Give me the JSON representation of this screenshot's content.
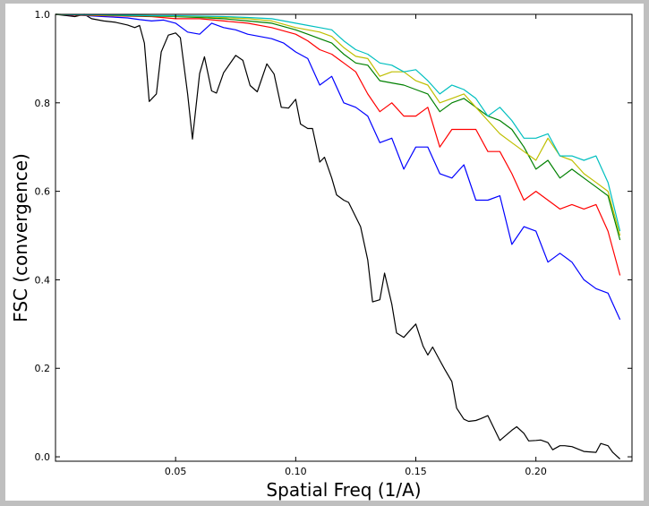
{
  "chart_data": {
    "type": "line",
    "xlabel": "Spatial Freq (1/A)",
    "ylabel": "FSC (convergence)",
    "xlim": [
      0.0,
      0.24
    ],
    "ylim": [
      -0.01,
      1.0
    ],
    "x_ticks": [
      {
        "value": 0.05,
        "label": "0.05"
      },
      {
        "value": 0.1,
        "label": "0.10"
      },
      {
        "value": 0.15,
        "label": "0.15"
      },
      {
        "value": 0.2,
        "label": "0.20"
      }
    ],
    "y_ticks": [
      {
        "value": 0.0,
        "label": "0.0"
      },
      {
        "value": 0.2,
        "label": "0.2"
      },
      {
        "value": 0.4,
        "label": "0.4"
      },
      {
        "value": 0.6,
        "label": "0.6"
      },
      {
        "value": 0.8,
        "label": "0.8"
      },
      {
        "value": 1.0,
        "label": "1.0"
      }
    ],
    "grid": false,
    "legend": "none",
    "series": [
      {
        "color": "#000000",
        "x": [
          0.0,
          0.005,
          0.008,
          0.012,
          0.015,
          0.02,
          0.025,
          0.03,
          0.033,
          0.035,
          0.037,
          0.039,
          0.042,
          0.044,
          0.047,
          0.05,
          0.052,
          0.055,
          0.057,
          0.06,
          0.062,
          0.065,
          0.067,
          0.07,
          0.075,
          0.078,
          0.081,
          0.084,
          0.088,
          0.091,
          0.094,
          0.097,
          0.1,
          0.102,
          0.105,
          0.107,
          0.11,
          0.112,
          0.115,
          0.117,
          0.12,
          0.122,
          0.127,
          0.13,
          0.132,
          0.135,
          0.137,
          0.14,
          0.142,
          0.145,
          0.147,
          0.15,
          0.153,
          0.155,
          0.157,
          0.16,
          0.162,
          0.165,
          0.167,
          0.17,
          0.172,
          0.175,
          0.177,
          0.18,
          0.185,
          0.19,
          0.192,
          0.195,
          0.197,
          0.2,
          0.202,
          0.205,
          0.207,
          0.21,
          0.212,
          0.215,
          0.22,
          0.225,
          0.227,
          0.23,
          0.232,
          0.235
        ],
        "y": [
          1.0,
          0.997,
          0.995,
          1.0,
          0.99,
          0.985,
          0.982,
          0.976,
          0.97,
          0.975,
          0.935,
          0.803,
          0.82,
          0.915,
          0.953,
          0.958,
          0.947,
          0.82,
          0.718,
          0.866,
          0.904,
          0.827,
          0.822,
          0.868,
          0.907,
          0.896,
          0.839,
          0.825,
          0.888,
          0.865,
          0.79,
          0.788,
          0.808,
          0.752,
          0.742,
          0.742,
          0.666,
          0.677,
          0.63,
          0.592,
          0.58,
          0.575,
          0.52,
          0.445,
          0.35,
          0.355,
          0.415,
          0.345,
          0.28,
          0.27,
          0.282,
          0.3,
          0.25,
          0.23,
          0.248,
          0.218,
          0.198,
          0.17,
          0.11,
          0.085,
          0.08,
          0.082,
          0.086,
          0.093,
          0.037,
          0.06,
          0.068,
          0.053,
          0.036,
          0.037,
          0.038,
          0.032,
          0.016,
          0.025,
          0.025,
          0.023,
          0.012,
          0.01,
          0.03,
          0.025,
          0.01,
          -0.005
        ]
      },
      {
        "color": "#0000ff",
        "x": [
          0.0,
          0.01,
          0.02,
          0.03,
          0.035,
          0.04,
          0.045,
          0.05,
          0.055,
          0.06,
          0.065,
          0.07,
          0.075,
          0.08,
          0.085,
          0.09,
          0.095,
          0.1,
          0.105,
          0.11,
          0.115,
          0.12,
          0.125,
          0.13,
          0.135,
          0.14,
          0.145,
          0.15,
          0.155,
          0.16,
          0.165,
          0.17,
          0.175,
          0.18,
          0.185,
          0.19,
          0.195,
          0.2,
          0.205,
          0.21,
          0.215,
          0.22,
          0.225,
          0.23,
          0.235
        ],
        "y": [
          1.0,
          0.998,
          0.995,
          0.992,
          0.988,
          0.985,
          0.987,
          0.98,
          0.96,
          0.955,
          0.98,
          0.97,
          0.965,
          0.955,
          0.95,
          0.945,
          0.935,
          0.915,
          0.9,
          0.84,
          0.86,
          0.8,
          0.79,
          0.77,
          0.71,
          0.72,
          0.65,
          0.7,
          0.7,
          0.64,
          0.63,
          0.66,
          0.58,
          0.58,
          0.59,
          0.48,
          0.52,
          0.51,
          0.44,
          0.46,
          0.44,
          0.4,
          0.38,
          0.37,
          0.31
        ]
      },
      {
        "color": "#ff0000",
        "x": [
          0.0,
          0.01,
          0.02,
          0.03,
          0.04,
          0.05,
          0.06,
          0.07,
          0.08,
          0.09,
          0.1,
          0.105,
          0.11,
          0.115,
          0.12,
          0.125,
          0.13,
          0.135,
          0.14,
          0.145,
          0.15,
          0.155,
          0.16,
          0.165,
          0.17,
          0.175,
          0.18,
          0.185,
          0.19,
          0.195,
          0.2,
          0.205,
          0.21,
          0.215,
          0.22,
          0.225,
          0.23,
          0.235
        ],
        "y": [
          1.0,
          0.998,
          0.997,
          0.996,
          0.995,
          0.99,
          0.99,
          0.985,
          0.98,
          0.97,
          0.955,
          0.94,
          0.92,
          0.91,
          0.89,
          0.87,
          0.82,
          0.78,
          0.8,
          0.77,
          0.77,
          0.79,
          0.7,
          0.74,
          0.74,
          0.74,
          0.69,
          0.69,
          0.64,
          0.58,
          0.6,
          0.58,
          0.56,
          0.57,
          0.56,
          0.57,
          0.51,
          0.41
        ]
      },
      {
        "color": "#008000",
        "x": [
          0.0,
          0.01,
          0.02,
          0.03,
          0.04,
          0.05,
          0.06,
          0.07,
          0.08,
          0.09,
          0.1,
          0.105,
          0.11,
          0.115,
          0.12,
          0.125,
          0.13,
          0.135,
          0.14,
          0.145,
          0.15,
          0.155,
          0.16,
          0.165,
          0.17,
          0.175,
          0.18,
          0.185,
          0.19,
          0.195,
          0.2,
          0.205,
          0.21,
          0.215,
          0.22,
          0.225,
          0.23,
          0.235
        ],
        "y": [
          1.0,
          0.999,
          0.998,
          0.997,
          0.996,
          0.995,
          0.993,
          0.99,
          0.985,
          0.98,
          0.965,
          0.955,
          0.945,
          0.935,
          0.91,
          0.89,
          0.885,
          0.85,
          0.845,
          0.84,
          0.83,
          0.82,
          0.78,
          0.8,
          0.81,
          0.79,
          0.77,
          0.76,
          0.74,
          0.7,
          0.65,
          0.67,
          0.63,
          0.65,
          0.63,
          0.61,
          0.59,
          0.49
        ]
      },
      {
        "color": "#bfbf00",
        "x": [
          0.0,
          0.01,
          0.02,
          0.03,
          0.04,
          0.05,
          0.06,
          0.07,
          0.08,
          0.09,
          0.1,
          0.105,
          0.11,
          0.115,
          0.12,
          0.125,
          0.13,
          0.135,
          0.14,
          0.145,
          0.15,
          0.155,
          0.16,
          0.165,
          0.17,
          0.175,
          0.18,
          0.185,
          0.19,
          0.195,
          0.2,
          0.205,
          0.21,
          0.215,
          0.22,
          0.225,
          0.23,
          0.235
        ],
        "y": [
          1.0,
          0.999,
          0.998,
          0.998,
          0.997,
          0.996,
          0.995,
          0.993,
          0.99,
          0.985,
          0.97,
          0.965,
          0.96,
          0.95,
          0.925,
          0.905,
          0.9,
          0.86,
          0.87,
          0.87,
          0.85,
          0.84,
          0.8,
          0.81,
          0.82,
          0.79,
          0.76,
          0.73,
          0.71,
          0.69,
          0.67,
          0.72,
          0.68,
          0.67,
          0.64,
          0.62,
          0.6,
          0.5
        ]
      },
      {
        "color": "#00bfbf",
        "x": [
          0.0,
          0.01,
          0.02,
          0.03,
          0.04,
          0.05,
          0.06,
          0.07,
          0.08,
          0.09,
          0.1,
          0.105,
          0.11,
          0.115,
          0.12,
          0.125,
          0.13,
          0.135,
          0.14,
          0.145,
          0.15,
          0.155,
          0.16,
          0.165,
          0.17,
          0.175,
          0.18,
          0.185,
          0.19,
          0.195,
          0.2,
          0.205,
          0.21,
          0.215,
          0.22,
          0.225,
          0.23,
          0.235
        ],
        "y": [
          1.0,
          0.999,
          0.999,
          0.998,
          0.997,
          0.997,
          0.996,
          0.995,
          0.993,
          0.99,
          0.98,
          0.975,
          0.97,
          0.965,
          0.94,
          0.92,
          0.91,
          0.89,
          0.885,
          0.87,
          0.875,
          0.85,
          0.82,
          0.84,
          0.83,
          0.81,
          0.77,
          0.79,
          0.76,
          0.72,
          0.72,
          0.73,
          0.68,
          0.68,
          0.67,
          0.68,
          0.62,
          0.51
        ]
      }
    ]
  }
}
